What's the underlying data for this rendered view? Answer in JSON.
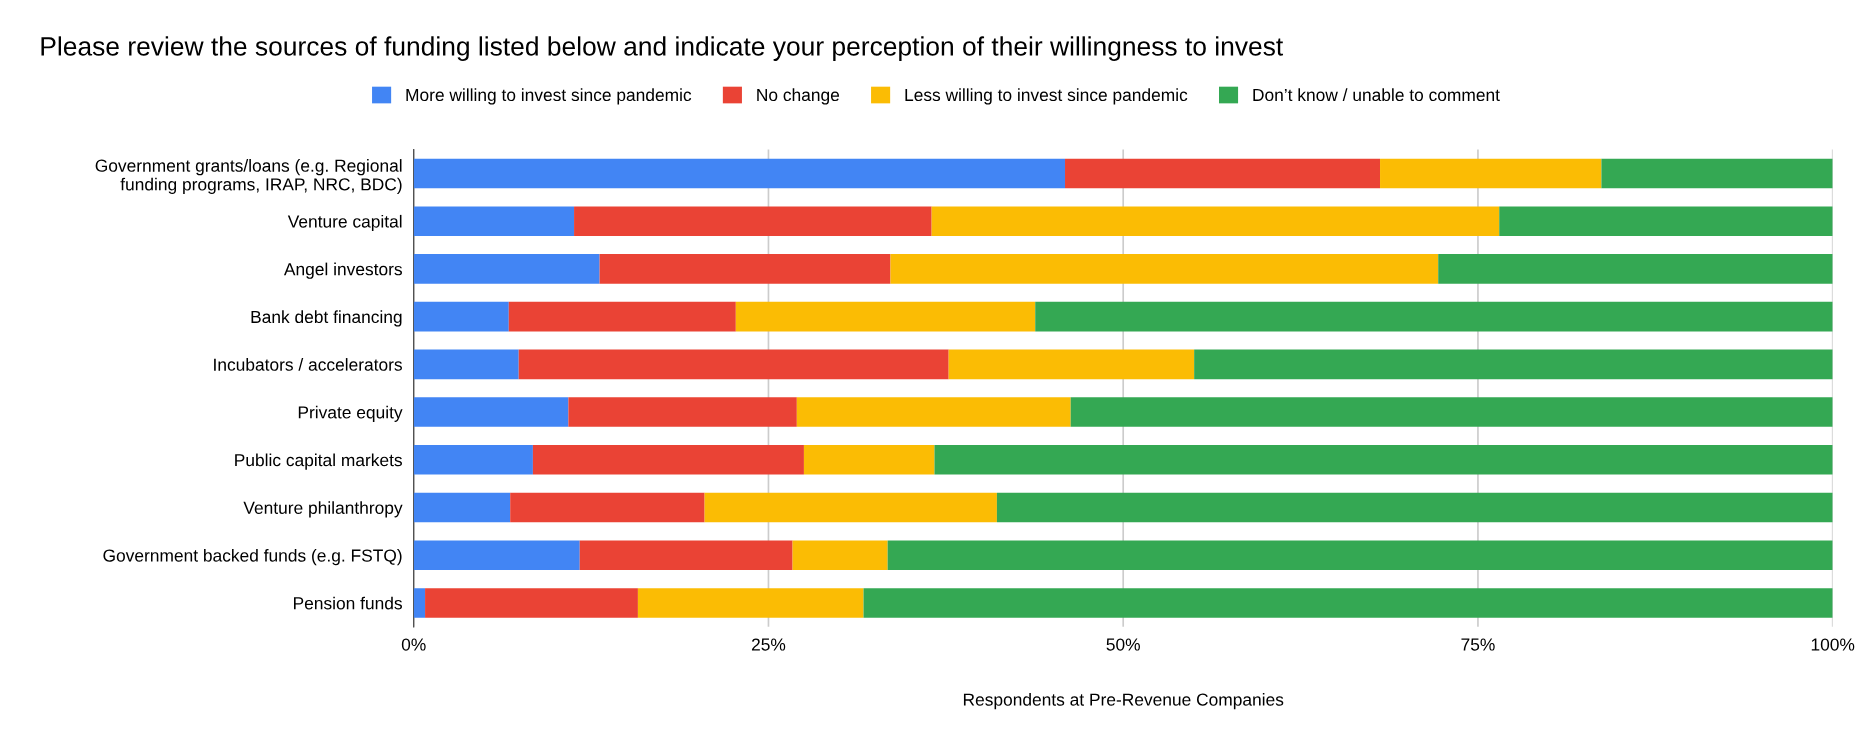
{
  "chart_data": {
    "type": "bar",
    "orientation": "horizontal",
    "stacked": true,
    "title": "Please review the sources of funding listed below and indicate your perception of their willingness to invest",
    "xlabel": "Respondents at Pre-Revenue Companies",
    "categories": [
      "Government grants/loans (e.g. Regional\nfunding programs, IRAP, NRC, BDC)",
      "Venture capital",
      "Angel investors",
      "Bank debt financing",
      "Incubators / accelerators",
      "Private equity",
      "Public capital markets",
      "Venture philanthropy",
      "Government backed funds (e.g. FSTQ)",
      "Pension funds"
    ],
    "series": [
      {
        "name": "More willing to invest since pandemic",
        "color": "#4285f4",
        "values": [
          45.9,
          11.3,
          13.1,
          6.7,
          7.4,
          10.9,
          8.4,
          6.8,
          11.7,
          0.8
        ]
      },
      {
        "name": "No change",
        "color": "#ea4335",
        "values": [
          22.2,
          25.2,
          20.5,
          16.0,
          30.3,
          16.1,
          19.1,
          13.7,
          15.0,
          15.0
        ]
      },
      {
        "name": "Less willing to invest since pandemic",
        "color": "#fbbc04",
        "values": [
          15.6,
          40.0,
          38.6,
          21.1,
          17.3,
          19.3,
          9.2,
          20.6,
          6.7,
          15.9
        ]
      },
      {
        "name": "Don’t know / unable to comment",
        "color": "#34a853",
        "values": [
          16.3,
          23.5,
          27.8,
          56.2,
          45.0,
          53.7,
          63.3,
          58.9,
          66.6,
          68.3
        ]
      }
    ],
    "xlim": [
      0,
      100
    ],
    "xticks": [
      {
        "value": 0,
        "label": "0%"
      },
      {
        "value": 25,
        "label": "25%"
      },
      {
        "value": 50,
        "label": "50%"
      },
      {
        "value": 75,
        "label": "75%"
      },
      {
        "value": 100,
        "label": "100%"
      }
    ],
    "grid": "x",
    "legend": "top"
  }
}
